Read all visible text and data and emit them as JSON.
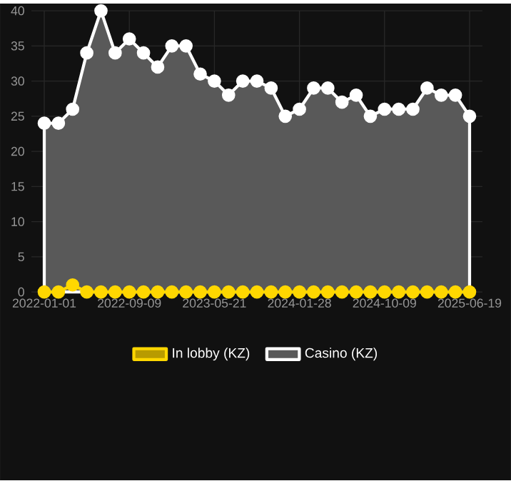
{
  "chart_data": {
    "type": "area",
    "categories": [
      "2022-01-01",
      null,
      null,
      null,
      null,
      null,
      "2022-09-09",
      null,
      null,
      null,
      null,
      null,
      "2023-05-21",
      null,
      null,
      null,
      null,
      null,
      "2024-01-28",
      null,
      null,
      null,
      null,
      null,
      "2024-10-09",
      null,
      null,
      null,
      null,
      null,
      "2025-06-19"
    ],
    "series": [
      {
        "name": "Casino (KZ)",
        "color": "#ffffff",
        "values": [
          24,
          24,
          26,
          34,
          40,
          34,
          36,
          34,
          32,
          35,
          35,
          31,
          30,
          28,
          30,
          30,
          29,
          25,
          26,
          29,
          29,
          27,
          28,
          25,
          26,
          26,
          26,
          29,
          28,
          28,
          25
        ]
      },
      {
        "name": "In lobby (KZ)",
        "type": "line",
        "color": "#ffd700",
        "values": [
          0,
          0,
          1,
          0,
          0,
          0,
          0,
          0,
          0,
          0,
          0,
          0,
          0,
          0,
          0,
          0,
          0,
          0,
          0,
          0,
          0,
          0,
          0,
          0,
          0,
          0,
          0,
          0,
          0,
          0,
          0
        ]
      }
    ],
    "ylim": [
      0,
      40
    ],
    "yticks": [
      0,
      5,
      10,
      15,
      20,
      25,
      30,
      35,
      40
    ],
    "grid": true,
    "legend": "bottom",
    "marker": "circle"
  }
}
